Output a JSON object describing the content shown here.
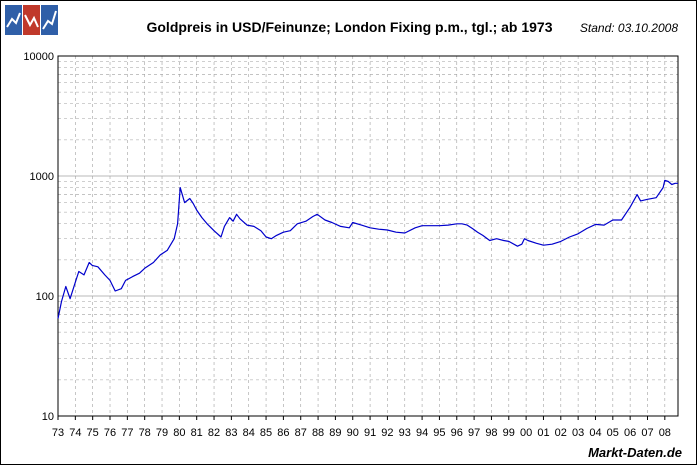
{
  "header": {
    "logo_icon": "chart-logo-icon",
    "title": "Goldpreis in USD/Feinunze; London Fixing p.m., tgl.; ab 1973",
    "stand": "Stand: 03.10.2008"
  },
  "footer": {
    "brand": "Markt-Daten.de"
  },
  "colors": {
    "line": "#0000cc",
    "grid": "#a0a0a0",
    "logo_blue": "#2f5fa8",
    "logo_red": "#c0392b"
  },
  "chart_data": {
    "type": "line",
    "title": "Goldpreis in USD/Feinunze; London Fixing p.m., tgl.; ab 1973",
    "xlabel": "",
    "ylabel": "",
    "y_scale": "log",
    "ylim": [
      10,
      10000
    ],
    "y_ticks": [
      "10",
      "100",
      "1000",
      "10000"
    ],
    "xlim": [
      1973.0,
      2008.76
    ],
    "x_ticks": [
      "73",
      "74",
      "75",
      "76",
      "77",
      "78",
      "79",
      "80",
      "81",
      "82",
      "83",
      "84",
      "85",
      "86",
      "87",
      "88",
      "89",
      "90",
      "91",
      "92",
      "93",
      "94",
      "95",
      "96",
      "97",
      "98",
      "99",
      "00",
      "01",
      "02",
      "03",
      "04",
      "05",
      "06",
      "07",
      "08"
    ],
    "grid": true,
    "legend": "none",
    "series": [
      {
        "x": [
          1973.0,
          1973.2,
          1973.45,
          1973.7,
          1974.0,
          1974.2,
          1974.5,
          1974.8,
          1974.98,
          1975.3,
          1975.7,
          1976.0,
          1976.3,
          1976.65,
          1976.9,
          1977.3,
          1977.7,
          1978.0,
          1978.5,
          1978.9,
          1979.3,
          1979.7,
          1979.9,
          1980.05,
          1980.3,
          1980.6,
          1980.8,
          1981.0,
          1981.3,
          1981.6,
          1982.0,
          1982.4,
          1982.6,
          1982.9,
          1983.1,
          1983.3,
          1983.5,
          1983.9,
          1984.3,
          1984.7,
          1985.0,
          1985.3,
          1985.6,
          1986.0,
          1986.4,
          1986.8,
          1987.3,
          1987.7,
          1987.95,
          1988.4,
          1988.8,
          1989.3,
          1989.8,
          1990.0,
          1990.5,
          1991.0,
          1991.5,
          1992.0,
          1992.5,
          1993.0,
          1993.6,
          1994.0,
          1995.0,
          1995.5,
          1996.0,
          1996.3,
          1996.6,
          1996.9,
          1997.2,
          1997.5,
          1997.9,
          1998.3,
          1998.7,
          1999.0,
          1999.5,
          1999.75,
          1999.9,
          2000.1,
          2000.6,
          2001.0,
          2001.5,
          2002.0,
          2002.5,
          2003.0,
          2003.5,
          2004.0,
          2004.5,
          2005.0,
          2005.5,
          2006.0,
          2006.4,
          2006.6,
          2007.0,
          2007.5,
          2007.9,
          2008.0,
          2008.2,
          2008.4,
          2008.6,
          2008.76
        ],
        "y": [
          65,
          90,
          120,
          95,
          130,
          160,
          150,
          190,
          180,
          175,
          150,
          135,
          110,
          115,
          135,
          145,
          155,
          170,
          190,
          220,
          240,
          300,
          400,
          800,
          600,
          650,
          590,
          520,
          450,
          400,
          350,
          310,
          380,
          450,
          420,
          480,
          440,
          390,
          380,
          350,
          310,
          300,
          320,
          340,
          350,
          400,
          420,
          460,
          480,
          430,
          410,
          380,
          370,
          410,
          390,
          370,
          360,
          355,
          340,
          335,
          370,
          385,
          385,
          390,
          400,
          400,
          390,
          365,
          340,
          320,
          290,
          300,
          290,
          285,
          260,
          270,
          300,
          290,
          275,
          265,
          270,
          285,
          310,
          330,
          365,
          395,
          390,
          430,
          430,
          550,
          700,
          620,
          640,
          660,
          800,
          920,
          900,
          850,
          870,
          870
        ]
      }
    ]
  }
}
